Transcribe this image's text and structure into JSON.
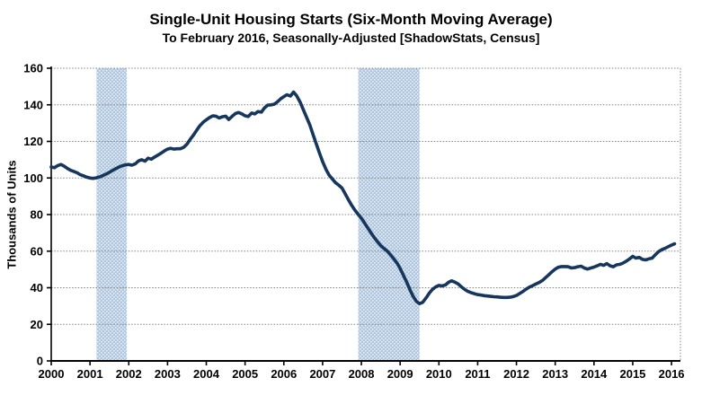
{
  "title": "Single-Unit Housing Starts (Six-Month Moving Average)",
  "subtitle": "To February 2016, Seasonally-Adjusted [ShadowStats, Census]",
  "chart_data": {
    "type": "line",
    "title": "Single-Unit Housing Starts (Six-Month Moving Average)",
    "subtitle": "To February 2016, Seasonally-Adjusted [ShadowStats, Census]",
    "xlabel": "",
    "ylabel": "Thousands of Units",
    "ylim": [
      0,
      160
    ],
    "yticks": [
      0,
      20,
      40,
      60,
      80,
      100,
      120,
      140,
      160
    ],
    "xlim": [
      2000,
      2016.23
    ],
    "xticks": [
      2000,
      2001,
      2002,
      2003,
      2004,
      2005,
      2006,
      2007,
      2008,
      2009,
      2010,
      2011,
      2012,
      2013,
      2014,
      2015,
      2016
    ],
    "grid": "horizontal-dotted-gray",
    "legend": "none",
    "colors": {
      "line": "#17365D",
      "recession_band": "#AAC7E5",
      "band_dot": "#EAF1F9",
      "gridline": "#848484",
      "axis": "#000000",
      "text": "#000000",
      "background": "#FFFFFF"
    },
    "recession_bands": [
      {
        "from": 2001.17,
        "to": 2001.95
      },
      {
        "from": 2007.92,
        "to": 2009.5
      }
    ],
    "series": [
      {
        "name": "Single-unit housing starts, six-month moving average",
        "points": [
          [
            2000.0,
            106.0
          ],
          [
            2000.08,
            105.6
          ],
          [
            2000.17,
            106.8
          ],
          [
            2000.25,
            107.4
          ],
          [
            2000.33,
            106.5
          ],
          [
            2000.42,
            105.2
          ],
          [
            2000.5,
            104.2
          ],
          [
            2000.58,
            103.6
          ],
          [
            2000.67,
            102.8
          ],
          [
            2000.75,
            101.8
          ],
          [
            2000.83,
            101.2
          ],
          [
            2000.92,
            100.4
          ],
          [
            2001.0,
            100.0
          ],
          [
            2001.08,
            99.8
          ],
          [
            2001.17,
            100.1
          ],
          [
            2001.25,
            100.6
          ],
          [
            2001.33,
            101.3
          ],
          [
            2001.42,
            102.2
          ],
          [
            2001.5,
            103.1
          ],
          [
            2001.58,
            104.1
          ],
          [
            2001.67,
            105.2
          ],
          [
            2001.75,
            106.0
          ],
          [
            2001.83,
            106.7
          ],
          [
            2001.92,
            107.2
          ],
          [
            2002.0,
            107.4
          ],
          [
            2002.08,
            107.0
          ],
          [
            2002.17,
            107.8
          ],
          [
            2002.25,
            109.3
          ],
          [
            2002.33,
            110.0
          ],
          [
            2002.42,
            109.2
          ],
          [
            2002.5,
            110.8
          ],
          [
            2002.58,
            110.3
          ],
          [
            2002.67,
            111.5
          ],
          [
            2002.75,
            112.5
          ],
          [
            2002.83,
            113.5
          ],
          [
            2002.92,
            114.8
          ],
          [
            2003.0,
            115.8
          ],
          [
            2003.08,
            116.2
          ],
          [
            2003.17,
            115.8
          ],
          [
            2003.25,
            116.0
          ],
          [
            2003.33,
            116.0
          ],
          [
            2003.42,
            116.8
          ],
          [
            2003.5,
            118.5
          ],
          [
            2003.58,
            121.0
          ],
          [
            2003.67,
            123.5
          ],
          [
            2003.75,
            126.0
          ],
          [
            2003.83,
            128.5
          ],
          [
            2003.92,
            130.5
          ],
          [
            2004.0,
            131.8
          ],
          [
            2004.08,
            133.0
          ],
          [
            2004.17,
            134.0
          ],
          [
            2004.25,
            133.8
          ],
          [
            2004.33,
            132.8
          ],
          [
            2004.42,
            133.5
          ],
          [
            2004.5,
            133.8
          ],
          [
            2004.58,
            132.0
          ],
          [
            2004.67,
            133.8
          ],
          [
            2004.75,
            135.2
          ],
          [
            2004.83,
            135.8
          ],
          [
            2004.92,
            135.0
          ],
          [
            2005.0,
            134.0
          ],
          [
            2005.08,
            133.6
          ],
          [
            2005.17,
            135.5
          ],
          [
            2005.25,
            135.0
          ],
          [
            2005.33,
            136.3
          ],
          [
            2005.42,
            136.0
          ],
          [
            2005.5,
            138.3
          ],
          [
            2005.58,
            139.8
          ],
          [
            2005.67,
            140.0
          ],
          [
            2005.75,
            140.3
          ],
          [
            2005.83,
            141.5
          ],
          [
            2005.92,
            143.3
          ],
          [
            2006.0,
            144.5
          ],
          [
            2006.08,
            145.5
          ],
          [
            2006.17,
            144.8
          ],
          [
            2006.25,
            147.0
          ],
          [
            2006.33,
            145.0
          ],
          [
            2006.42,
            141.5
          ],
          [
            2006.5,
            137.5
          ],
          [
            2006.58,
            133.5
          ],
          [
            2006.67,
            129.0
          ],
          [
            2006.75,
            124.0
          ],
          [
            2006.83,
            119.0
          ],
          [
            2006.92,
            113.5
          ],
          [
            2007.0,
            109.0
          ],
          [
            2007.08,
            105.0
          ],
          [
            2007.17,
            101.5
          ],
          [
            2007.25,
            99.5
          ],
          [
            2007.33,
            97.5
          ],
          [
            2007.42,
            96.0
          ],
          [
            2007.5,
            94.5
          ],
          [
            2007.58,
            91.5
          ],
          [
            2007.67,
            88.0
          ],
          [
            2007.75,
            85.0
          ],
          [
            2007.83,
            82.5
          ],
          [
            2007.92,
            80.0
          ],
          [
            2008.0,
            78.0
          ],
          [
            2008.08,
            75.5
          ],
          [
            2008.17,
            72.5
          ],
          [
            2008.25,
            70.0
          ],
          [
            2008.33,
            67.5
          ],
          [
            2008.42,
            65.0
          ],
          [
            2008.5,
            63.0
          ],
          [
            2008.58,
            61.5
          ],
          [
            2008.67,
            60.0
          ],
          [
            2008.75,
            58.0
          ],
          [
            2008.83,
            56.0
          ],
          [
            2008.92,
            53.5
          ],
          [
            2009.0,
            50.5
          ],
          [
            2009.08,
            47.0
          ],
          [
            2009.17,
            43.0
          ],
          [
            2009.25,
            39.0
          ],
          [
            2009.33,
            35.5
          ],
          [
            2009.42,
            32.5
          ],
          [
            2009.5,
            31.3
          ],
          [
            2009.58,
            32.0
          ],
          [
            2009.67,
            34.5
          ],
          [
            2009.75,
            37.0
          ],
          [
            2009.83,
            39.0
          ],
          [
            2009.92,
            40.5
          ],
          [
            2010.0,
            41.3
          ],
          [
            2010.08,
            41.0
          ],
          [
            2010.17,
            41.5
          ],
          [
            2010.25,
            43.0
          ],
          [
            2010.33,
            43.8
          ],
          [
            2010.42,
            43.0
          ],
          [
            2010.5,
            42.0
          ],
          [
            2010.58,
            40.5
          ],
          [
            2010.67,
            39.0
          ],
          [
            2010.75,
            38.0
          ],
          [
            2010.83,
            37.3
          ],
          [
            2010.92,
            36.7
          ],
          [
            2011.0,
            36.2
          ],
          [
            2011.08,
            36.0
          ],
          [
            2011.17,
            35.7
          ],
          [
            2011.25,
            35.5
          ],
          [
            2011.33,
            35.3
          ],
          [
            2011.42,
            35.1
          ],
          [
            2011.5,
            35.0
          ],
          [
            2011.58,
            34.8
          ],
          [
            2011.67,
            34.7
          ],
          [
            2011.75,
            34.7
          ],
          [
            2011.83,
            34.8
          ],
          [
            2011.92,
            35.2
          ],
          [
            2012.0,
            35.8
          ],
          [
            2012.08,
            36.8
          ],
          [
            2012.17,
            38.0
          ],
          [
            2012.25,
            39.2
          ],
          [
            2012.33,
            40.3
          ],
          [
            2012.42,
            41.2
          ],
          [
            2012.5,
            42.0
          ],
          [
            2012.58,
            42.8
          ],
          [
            2012.67,
            44.0
          ],
          [
            2012.75,
            45.5
          ],
          [
            2012.83,
            47.0
          ],
          [
            2012.92,
            48.8
          ],
          [
            2013.0,
            50.2
          ],
          [
            2013.08,
            51.2
          ],
          [
            2013.17,
            51.6
          ],
          [
            2013.25,
            51.6
          ],
          [
            2013.33,
            51.5
          ],
          [
            2013.42,
            50.8
          ],
          [
            2013.5,
            51.0
          ],
          [
            2013.58,
            51.5
          ],
          [
            2013.67,
            51.8
          ],
          [
            2013.75,
            50.8
          ],
          [
            2013.83,
            50.2
          ],
          [
            2013.92,
            50.8
          ],
          [
            2014.0,
            51.3
          ],
          [
            2014.08,
            52.0
          ],
          [
            2014.17,
            52.8
          ],
          [
            2014.25,
            52.2
          ],
          [
            2014.33,
            53.2
          ],
          [
            2014.42,
            52.0
          ],
          [
            2014.5,
            51.5
          ],
          [
            2014.58,
            52.5
          ],
          [
            2014.67,
            52.8
          ],
          [
            2014.75,
            53.5
          ],
          [
            2014.83,
            54.5
          ],
          [
            2014.92,
            55.8
          ],
          [
            2015.0,
            57.2
          ],
          [
            2015.08,
            56.2
          ],
          [
            2015.17,
            56.6
          ],
          [
            2015.25,
            55.5
          ],
          [
            2015.33,
            55.2
          ],
          [
            2015.42,
            55.8
          ],
          [
            2015.5,
            56.2
          ],
          [
            2015.58,
            58.0
          ],
          [
            2015.67,
            59.8
          ],
          [
            2015.75,
            60.8
          ],
          [
            2015.83,
            61.5
          ],
          [
            2015.92,
            62.5
          ],
          [
            2016.0,
            63.3
          ],
          [
            2016.08,
            64.0
          ]
        ]
      }
    ]
  }
}
